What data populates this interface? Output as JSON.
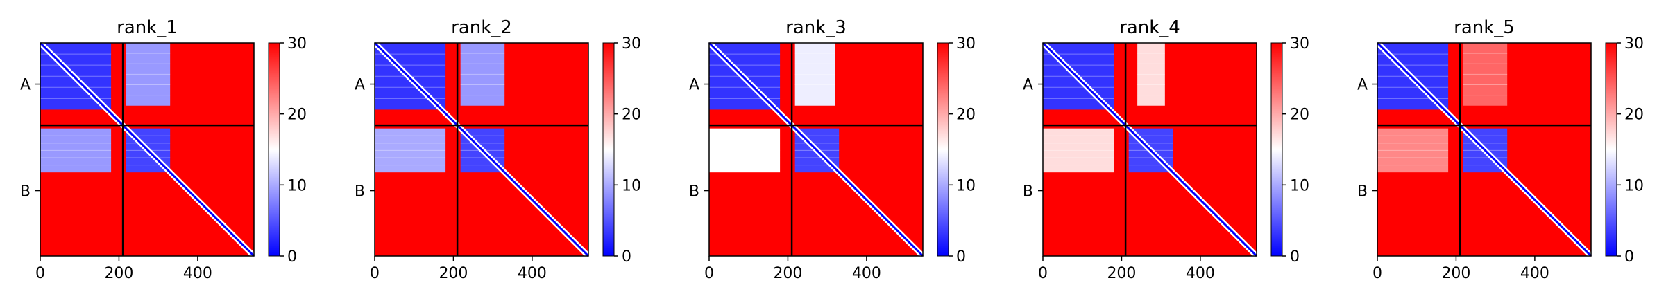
{
  "chart_data": [
    {
      "type": "heatmap",
      "title": "rank_1",
      "chains": [
        {
          "label": "A",
          "start": 0,
          "end": 210
        },
        {
          "label": "B",
          "start": 210,
          "end": 543
        }
      ],
      "x_range": [
        0,
        543
      ],
      "x_ticks": [
        "0",
        "200",
        "400"
      ],
      "x_tick_values": [
        0,
        200,
        400
      ],
      "colorbar": {
        "min": 0,
        "max": 30,
        "ticks": [
          "0",
          "10",
          "20",
          "30"
        ],
        "tick_values": [
          0,
          10,
          20,
          30
        ],
        "colors": [
          "#0000ff",
          "#ffffff",
          "#ff0000"
        ]
      },
      "blocks": [
        {
          "x0": 0,
          "x1": 180,
          "y0": 0,
          "y1": 170,
          "value": 3
        },
        {
          "x0": 218,
          "x1": 330,
          "y0": 0,
          "y1": 160,
          "value": 9
        },
        {
          "x0": 0,
          "x1": 180,
          "y0": 218,
          "y1": 330,
          "value": 9
        },
        {
          "x0": 218,
          "x1": 330,
          "y0": 218,
          "y1": 330,
          "value": 4
        }
      ]
    },
    {
      "type": "heatmap",
      "title": "rank_2",
      "chains": [
        {
          "label": "A",
          "start": 0,
          "end": 210
        },
        {
          "label": "B",
          "start": 210,
          "end": 543
        }
      ],
      "x_range": [
        0,
        543
      ],
      "x_ticks": [
        "0",
        "200",
        "400"
      ],
      "x_tick_values": [
        0,
        200,
        400
      ],
      "colorbar": {
        "min": 0,
        "max": 30,
        "ticks": [
          "0",
          "10",
          "20",
          "30"
        ],
        "tick_values": [
          0,
          10,
          20,
          30
        ],
        "colors": [
          "#0000ff",
          "#ffffff",
          "#ff0000"
        ]
      },
      "blocks": [
        {
          "x0": 0,
          "x1": 180,
          "y0": 0,
          "y1": 170,
          "value": 3
        },
        {
          "x0": 218,
          "x1": 330,
          "y0": 0,
          "y1": 160,
          "value": 9
        },
        {
          "x0": 0,
          "x1": 180,
          "y0": 218,
          "y1": 330,
          "value": 10
        },
        {
          "x0": 218,
          "x1": 330,
          "y0": 218,
          "y1": 330,
          "value": 4
        }
      ]
    },
    {
      "type": "heatmap",
      "title": "rank_3",
      "chains": [
        {
          "label": "A",
          "start": 0,
          "end": 210
        },
        {
          "label": "B",
          "start": 210,
          "end": 543
        }
      ],
      "x_range": [
        0,
        543
      ],
      "x_ticks": [
        "0",
        "200",
        "400"
      ],
      "x_tick_values": [
        0,
        200,
        400
      ],
      "colorbar": {
        "min": 0,
        "max": 30,
        "ticks": [
          "0",
          "10",
          "20",
          "30"
        ],
        "tick_values": [
          0,
          10,
          20,
          30
        ],
        "colors": [
          "#0000ff",
          "#ffffff",
          "#ff0000"
        ]
      },
      "blocks": [
        {
          "x0": 0,
          "x1": 180,
          "y0": 0,
          "y1": 170,
          "value": 3
        },
        {
          "x0": 218,
          "x1": 320,
          "y0": 0,
          "y1": 160,
          "value": 14
        },
        {
          "x0": 0,
          "x1": 180,
          "y0": 218,
          "y1": 330,
          "value": 15
        },
        {
          "x0": 218,
          "x1": 330,
          "y0": 218,
          "y1": 330,
          "value": 4
        }
      ]
    },
    {
      "type": "heatmap",
      "title": "rank_4",
      "chains": [
        {
          "label": "A",
          "start": 0,
          "end": 210
        },
        {
          "label": "B",
          "start": 210,
          "end": 543
        }
      ],
      "x_range": [
        0,
        543
      ],
      "x_ticks": [
        "0",
        "200",
        "400"
      ],
      "x_tick_values": [
        0,
        200,
        400
      ],
      "colorbar": {
        "min": 0,
        "max": 30,
        "ticks": [
          "0",
          "10",
          "20",
          "30"
        ],
        "tick_values": [
          0,
          10,
          20,
          30
        ],
        "colors": [
          "#0000ff",
          "#ffffff",
          "#ff0000"
        ]
      },
      "blocks": [
        {
          "x0": 0,
          "x1": 180,
          "y0": 0,
          "y1": 170,
          "value": 3
        },
        {
          "x0": 240,
          "x1": 310,
          "y0": 0,
          "y1": 160,
          "value": 17
        },
        {
          "x0": 0,
          "x1": 180,
          "y0": 218,
          "y1": 330,
          "value": 17
        },
        {
          "x0": 218,
          "x1": 330,
          "y0": 218,
          "y1": 330,
          "value": 4
        }
      ]
    },
    {
      "type": "heatmap",
      "title": "rank_5",
      "chains": [
        {
          "label": "A",
          "start": 0,
          "end": 210
        },
        {
          "label": "B",
          "start": 210,
          "end": 543
        }
      ],
      "x_range": [
        0,
        543
      ],
      "x_ticks": [
        "0",
        "200",
        "400"
      ],
      "x_tick_values": [
        0,
        200,
        400
      ],
      "colorbar": {
        "min": 0,
        "max": 30,
        "ticks": [
          "0",
          "10",
          "20",
          "30"
        ],
        "tick_values": [
          0,
          10,
          20,
          30
        ],
        "colors": [
          "#0000ff",
          "#ffffff",
          "#ff0000"
        ]
      },
      "blocks": [
        {
          "x0": 0,
          "x1": 180,
          "y0": 0,
          "y1": 170,
          "value": 3
        },
        {
          "x0": 218,
          "x1": 330,
          "y0": 0,
          "y1": 160,
          "value": 24
        },
        {
          "x0": 0,
          "x1": 180,
          "y0": 218,
          "y1": 330,
          "value": 22
        },
        {
          "x0": 218,
          "x1": 330,
          "y0": 218,
          "y1": 330,
          "value": 4
        }
      ]
    }
  ]
}
